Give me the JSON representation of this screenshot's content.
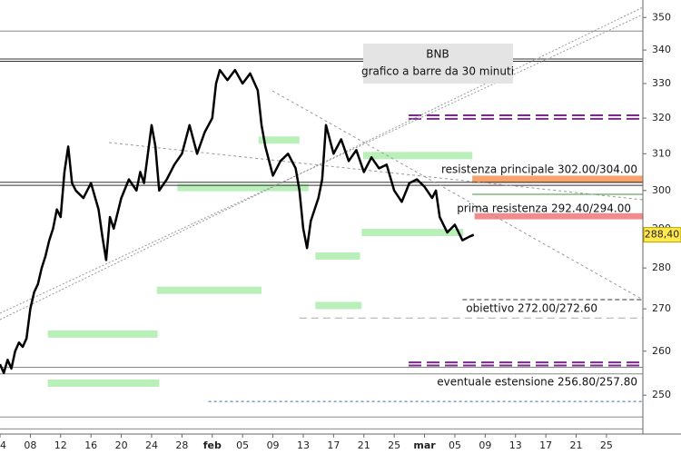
{
  "chart_data": {
    "type": "line",
    "title": "BNB",
    "subtitle": "grafico a barre da 30 minuti",
    "log_scale": true,
    "xlim": [
      4,
      88.8
    ],
    "ylim": [
      241.5,
      355.5
    ],
    "xticks": [
      {
        "value": 4,
        "label": "04"
      },
      {
        "value": 8,
        "label": "08"
      },
      {
        "value": 12,
        "label": "12"
      },
      {
        "value": 16,
        "label": "16"
      },
      {
        "value": 20,
        "label": "20"
      },
      {
        "value": 24,
        "label": "24"
      },
      {
        "value": 28,
        "label": "28"
      },
      {
        "value": 32,
        "label": "feb"
      },
      {
        "value": 36,
        "label": "05"
      },
      {
        "value": 40,
        "label": "09"
      },
      {
        "value": 44,
        "label": "13"
      },
      {
        "value": 48,
        "label": "17"
      },
      {
        "value": 52,
        "label": "21"
      },
      {
        "value": 56,
        "label": "25"
      },
      {
        "value": 60,
        "label": "mar"
      },
      {
        "value": 64,
        "label": "05"
      },
      {
        "value": 68,
        "label": "09"
      },
      {
        "value": 72,
        "label": "13"
      },
      {
        "value": 76,
        "label": "17"
      },
      {
        "value": 80,
        "label": "21"
      },
      {
        "value": 84,
        "label": "25"
      }
    ],
    "yticks": [
      250,
      260,
      270,
      280,
      290,
      300,
      310,
      320,
      330,
      340,
      350
    ],
    "series": [
      {
        "name": "BNB",
        "color": "#000000",
        "x": [
          4,
          4.5,
          5,
          5.5,
          6,
          6.5,
          7,
          7.5,
          8,
          8.5,
          9,
          9.5,
          10,
          10.5,
          11,
          11.5,
          12,
          12.5,
          13,
          13.5,
          14,
          15,
          16,
          17,
          17.5,
          18,
          18.5,
          19,
          20,
          21,
          22,
          22.5,
          23,
          24,
          24.5,
          25,
          26,
          27,
          28,
          29,
          30,
          31,
          32,
          32.5,
          33,
          34,
          35,
          36,
          37,
          38,
          38.5,
          39,
          40,
          41,
          42,
          43,
          43.5,
          44,
          44.5,
          45,
          46,
          46.5,
          47,
          48,
          49,
          50,
          51,
          52,
          53,
          54,
          55,
          56,
          57,
          58,
          59,
          60,
          61,
          61.5,
          62,
          63,
          64,
          65,
          66,
          66.5
        ],
        "values": [
          257,
          255,
          258,
          256,
          260,
          262,
          261,
          263,
          270,
          274,
          276,
          280,
          283,
          287,
          290,
          295,
          293,
          305,
          312,
          302,
          300,
          298,
          302,
          295,
          288,
          282,
          293,
          290,
          298,
          303,
          300,
          305,
          302,
          318,
          312,
          300,
          303,
          307,
          310,
          318,
          310,
          316,
          320,
          330,
          334,
          331,
          334,
          330,
          333,
          328,
          318,
          312,
          304,
          308,
          310,
          306,
          300,
          290,
          285,
          292,
          298,
          303,
          318,
          310,
          314,
          308,
          311,
          305,
          309,
          306,
          307,
          300,
          297,
          302,
          303,
          301,
          298,
          300,
          293,
          289,
          291,
          287,
          288,
          288.4
        ]
      }
    ],
    "last_price": {
      "value": 288.4,
      "label": "288,40"
    },
    "bands": [
      {
        "from": 66.3,
        "low": 302,
        "high": 304,
        "color": "#f6a46e"
      },
      {
        "from": 66.6,
        "low": 292.4,
        "high": 294,
        "color": "#f28b8b"
      }
    ],
    "levels": [
      {
        "value": 345.8,
        "style": "gray"
      },
      {
        "value": 337.3,
        "style": "dark"
      },
      {
        "value": 336.6,
        "style": "dark"
      },
      {
        "value": 320.8,
        "style": "purple",
        "from": 57.9
      },
      {
        "value": 319.8,
        "style": "purple",
        "from": 57.9
      },
      {
        "value": 302.2,
        "style": "dark"
      },
      {
        "value": 301.4,
        "style": "dark"
      },
      {
        "value": 299,
        "style": "green",
        "from": 66.3
      },
      {
        "value": 272.2,
        "style": "dashed",
        "from": 65
      },
      {
        "value": 267.8,
        "style": "gray-dashed",
        "from": 43.5
      },
      {
        "value": 257.4,
        "style": "purple",
        "from": 57.9
      },
      {
        "value": 256.7,
        "style": "purple",
        "from": 57.9
      },
      {
        "value": 256.3,
        "style": "gray"
      },
      {
        "value": 254.8,
        "style": "gray"
      },
      {
        "value": 248.6,
        "style": "blue-dotted",
        "from": 31.5
      },
      {
        "value": 245.2,
        "style": "gray"
      },
      {
        "value": 242.6,
        "style": "gray"
      }
    ],
    "zones": [
      {
        "value": 313.8,
        "from": 38.1,
        "to": 43.5
      },
      {
        "value": 300.8,
        "from": 27.4,
        "to": 44.7
      },
      {
        "value": 309.5,
        "from": 51.9,
        "to": 66.3
      },
      {
        "value": 289,
        "from": 51.7,
        "to": 65.1
      },
      {
        "value": 283,
        "from": 45.6,
        "to": 51.5
      },
      {
        "value": 274.5,
        "from": 24.7,
        "to": 38.5
      },
      {
        "value": 270.8,
        "from": 45.6,
        "to": 51.7
      },
      {
        "value": 264,
        "from": 10.3,
        "to": 24.8
      },
      {
        "value": 252.7,
        "from": 10.3,
        "to": 25
      }
    ],
    "annotations": [
      "resistenza principale 302.00/304.00",
      "prima resistenza 292.40/294.00",
      "obiettivo 272.00/272.60",
      "eventuale estensione 256.80/257.80"
    ]
  }
}
